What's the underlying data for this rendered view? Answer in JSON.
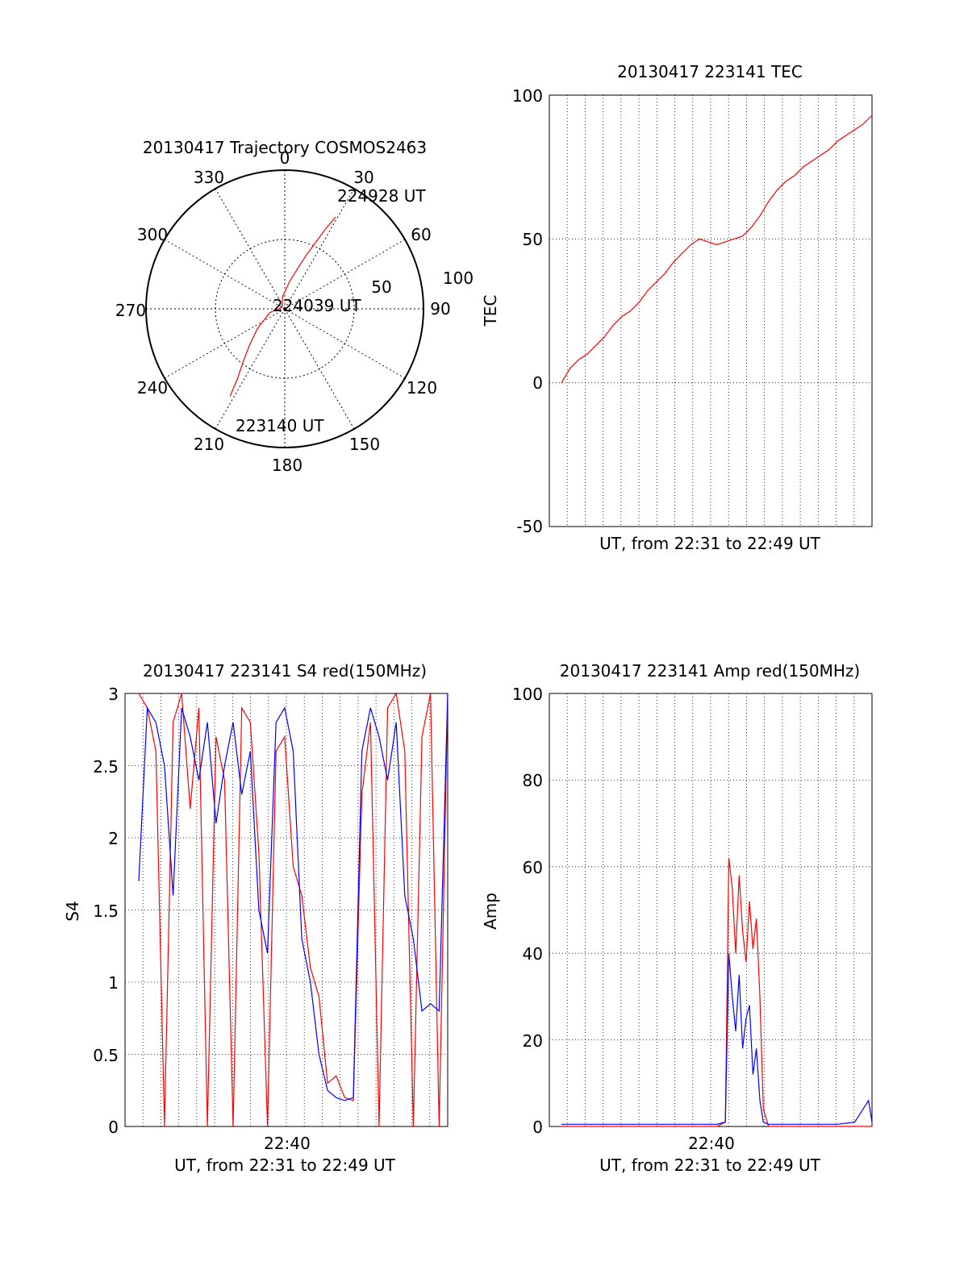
{
  "chart_data": [
    {
      "type": "polar",
      "title": "20130417 Trajectory COSMOS2463",
      "theta_labels": [
        "0",
        "30",
        "60",
        "90",
        "120",
        "150",
        "180",
        "210",
        "240",
        "270",
        "300",
        "330"
      ],
      "radial_tick_labels": [
        "50",
        "100"
      ],
      "line_color": "#ff0000",
      "trajectory": [
        {
          "az": 212,
          "el": 23
        },
        {
          "az": 214,
          "el": 35
        },
        {
          "az": 218,
          "el": 46
        },
        {
          "az": 224,
          "el": 57
        },
        {
          "az": 234,
          "el": 68
        },
        {
          "az": 256,
          "el": 80
        },
        {
          "az": 300,
          "el": 88
        },
        {
          "az": 350,
          "el": 82
        },
        {
          "az": 10,
          "el": 72
        },
        {
          "az": 18,
          "el": 62
        },
        {
          "az": 22,
          "el": 52
        },
        {
          "az": 25,
          "el": 42
        },
        {
          "az": 27,
          "el": 32
        },
        {
          "az": 29,
          "el": 22
        }
      ],
      "annotations": [
        {
          "text": "224928 UT",
          "az": 29,
          "el": 22
        },
        {
          "text": "224039 UT",
          "az": 300,
          "el": 88
        },
        {
          "text": "223140 UT",
          "az": 212,
          "el": 23
        }
      ]
    },
    {
      "type": "line",
      "title": "20130417 223141 TEC",
      "xlabel": "UT, from 22:31 to 22:49 UT",
      "ylabel": "TEC",
      "ylim": [
        -50,
        100
      ],
      "y_ticks": [
        "100",
        "50",
        "0",
        "-50"
      ],
      "grid": true,
      "series": [
        {
          "color": "#ff0000",
          "x": [
            0,
            0.5,
            1,
            1.5,
            2,
            2.5,
            3,
            3.5,
            4,
            4.5,
            5,
            5.5,
            6,
            6.5,
            7,
            7.5,
            8,
            8.5,
            9,
            9.5,
            10,
            10.5,
            11,
            11.5,
            12,
            12.5,
            13,
            13.5,
            14,
            14.5,
            15,
            15.5,
            16,
            16.5,
            17,
            17.5,
            18
          ],
          "values": [
            0,
            5,
            8,
            10,
            13,
            16,
            20,
            23,
            25,
            28,
            32,
            35,
            38,
            42,
            45,
            48,
            50,
            49,
            48,
            49,
            50,
            51,
            54,
            58,
            63,
            67,
            70,
            72,
            75,
            77,
            79,
            81,
            84,
            86,
            88,
            90,
            93
          ]
        }
      ]
    },
    {
      "type": "line",
      "title": "20130417 223141 S4 red(150MHz)",
      "xlabel": "UT, from 22:31 to 22:49 UT",
      "ylabel": "S4",
      "ylim": [
        0,
        3
      ],
      "y_ticks": [
        "3",
        "2.5",
        "2",
        "1.5",
        "1",
        "0.5",
        "0"
      ],
      "x_ticks": [
        "22:40"
      ],
      "grid": true,
      "series": [
        {
          "color": "#ff0000",
          "x": [
            0,
            0.5,
            1,
            1.5,
            2,
            2.5,
            3,
            3.5,
            4,
            4.5,
            5,
            5.5,
            6,
            6.5,
            7,
            7.5,
            8,
            8.5,
            9,
            9.5,
            10,
            10.5,
            11,
            11.5,
            12,
            12.5,
            13,
            13.5,
            14,
            14.5,
            15,
            15.5,
            16,
            16.5,
            17,
            17.5,
            18
          ],
          "values": [
            3,
            2.9,
            2.6,
            0,
            2.8,
            3,
            2.2,
            2.9,
            0,
            2.7,
            2.4,
            0,
            2.9,
            2.8,
            1.9,
            0,
            2.6,
            2.7,
            1.8,
            1.6,
            1.1,
            0.9,
            0.3,
            0.35,
            0.2,
            0.18,
            2.3,
            2.8,
            0,
            2.9,
            3,
            2.6,
            0,
            2.7,
            3,
            0,
            3
          ]
        },
        {
          "color": "#0000ff",
          "x": [
            0,
            0.5,
            1,
            1.5,
            2,
            2.5,
            3,
            3.5,
            4,
            4.5,
            5,
            5.5,
            6,
            6.5,
            7,
            7.5,
            8,
            8.5,
            9,
            9.5,
            10,
            10.5,
            11,
            11.5,
            12,
            12.5,
            13,
            13.5,
            14,
            14.5,
            15,
            15.5,
            16,
            16.5,
            17,
            17.5,
            18
          ],
          "values": [
            1.7,
            2.9,
            2.8,
            2.5,
            1.6,
            2.9,
            2.7,
            2.4,
            2.8,
            2.1,
            2.5,
            2.8,
            2.3,
            2.6,
            1.5,
            1.2,
            2.8,
            2.9,
            2.6,
            1.3,
            1.0,
            0.5,
            0.25,
            0.2,
            0.18,
            0.2,
            2.6,
            2.9,
            2.7,
            2.4,
            2.8,
            1.6,
            1.3,
            0.8,
            0.85,
            0.8,
            3
          ]
        }
      ]
    },
    {
      "type": "line",
      "title": "20130417 223141 Amp red(150MHz)",
      "xlabel": "UT, from 22:31 to 22:49 UT",
      "ylabel": "Amp",
      "ylim": [
        0,
        100
      ],
      "y_ticks": [
        "100",
        "80",
        "60",
        "40",
        "20",
        "0"
      ],
      "x_ticks": [
        "22:40"
      ],
      "grid": true,
      "series": [
        {
          "color": "#ff0000",
          "x": [
            0,
            1,
            2,
            3,
            4,
            5,
            6,
            7,
            8,
            9,
            9.5,
            9.7,
            9.9,
            10.1,
            10.3,
            10.5,
            10.7,
            10.9,
            11.1,
            11.3,
            11.5,
            11.7,
            12,
            13,
            14,
            15,
            16,
            17,
            18
          ],
          "values": [
            0,
            0,
            0,
            0,
            0,
            0,
            0,
            0,
            0,
            0,
            1,
            62,
            55,
            40,
            58,
            45,
            38,
            52,
            41,
            48,
            30,
            4,
            0,
            0,
            0,
            0,
            0,
            0,
            0
          ]
        },
        {
          "color": "#0000ff",
          "x": [
            0,
            1,
            2,
            3,
            4,
            5,
            6,
            7,
            8,
            9,
            9.5,
            9.7,
            9.9,
            10.1,
            10.3,
            10.5,
            10.7,
            10.9,
            11.1,
            11.3,
            11.5,
            11.7,
            12,
            13,
            14,
            15,
            16,
            17,
            17.8,
            18
          ],
          "values": [
            0.5,
            0.5,
            0.5,
            0.5,
            0.5,
            0.5,
            0.5,
            0.5,
            0.5,
            0.5,
            1,
            40,
            30,
            22,
            35,
            18,
            25,
            28,
            12,
            18,
            6,
            1,
            0.5,
            0.5,
            0.5,
            0.5,
            0.5,
            1,
            6,
            1
          ]
        }
      ]
    }
  ]
}
